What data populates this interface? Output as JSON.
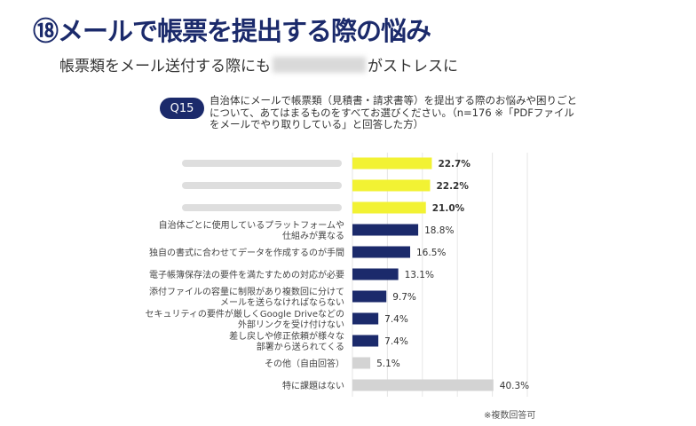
{
  "header": {
    "title": "⑱メールで帳票を提出する際の悩み",
    "subtitle_before": "帳票類をメール送付する際にも",
    "subtitle_after": "がストレスに"
  },
  "question": {
    "badge": "Q15",
    "text": "自治体にメールで帳票類（見積書・請求書等）を提出する際のお悩みや困りごとについて、あてはまるものをすべてお選びください。（n=176 ※「PDFファイルをメールでやり取りしている」と回答した方）"
  },
  "note": "※複数回答可",
  "chart_data": {
    "type": "bar",
    "orientation": "horizontal",
    "xlim": [
      0,
      50
    ],
    "grid": true,
    "categories": [
      "",
      "",
      "",
      "自治体ごとに使用しているプラットフォームや|仕組みが異なる",
      "独自の書式に合わせてデータを作成するのが手間",
      "電子帳簿保存法の要件を満たすための対応が必要",
      "添付ファイルの容量に制限があり複数回に分けて|メールを送らなければならない",
      "セキュリティの要件が厳しくGoogle Driveなどの|外部リンクを受け付けない",
      "差し戻しや修正依頼が様々な|部署から送られてくる",
      "その他（自由回答）",
      "特に課題はない"
    ],
    "values": [
      22.7,
      22.2,
      21.0,
      18.8,
      16.5,
      13.1,
      9.7,
      7.4,
      7.4,
      5.1,
      40.3
    ],
    "labels": [
      "22.7%",
      "22.2%",
      "21.0%",
      "18.8%",
      "16.5%",
      "13.1%",
      "9.7%",
      "7.4%",
      "7.4%",
      "5.1%",
      "40.3%"
    ],
    "colors": [
      "#f2f233",
      "#f2f233",
      "#f2f233",
      "#1b2a6b",
      "#1b2a6b",
      "#1b2a6b",
      "#1b2a6b",
      "#1b2a6b",
      "#1b2a6b",
      "#d3d3d3",
      "#d3d3d3"
    ],
    "highlighted": [
      true,
      true,
      true,
      false,
      false,
      false,
      false,
      false,
      false,
      false,
      false
    ]
  }
}
